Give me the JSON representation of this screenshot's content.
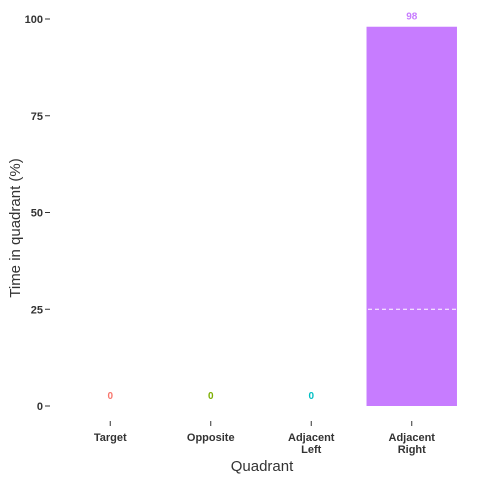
{
  "chart_data": {
    "type": "bar",
    "categories": [
      "Target",
      "Opposite",
      "Adjacent Left",
      "Adjacent Right"
    ],
    "category_lines": [
      [
        "Target"
      ],
      [
        "Opposite"
      ],
      [
        "Adjacent",
        "Left"
      ],
      [
        "Adjacent",
        "Right"
      ]
    ],
    "values": [
      0,
      0,
      0,
      98
    ],
    "value_labels": [
      "0",
      "0",
      "0",
      "98"
    ],
    "colors": [
      "#F8766D",
      "#7CAE00",
      "#00BFC4",
      "#C77CFF"
    ],
    "xlabel": "Quadrant",
    "ylabel": "Time in quadrant (%)",
    "ylim": [
      0,
      100
    ],
    "yticks": [
      0,
      25,
      50,
      75,
      100
    ],
    "reference_line": {
      "y": 25,
      "style": "dashed",
      "color": "#ffffff"
    },
    "grid": false
  }
}
